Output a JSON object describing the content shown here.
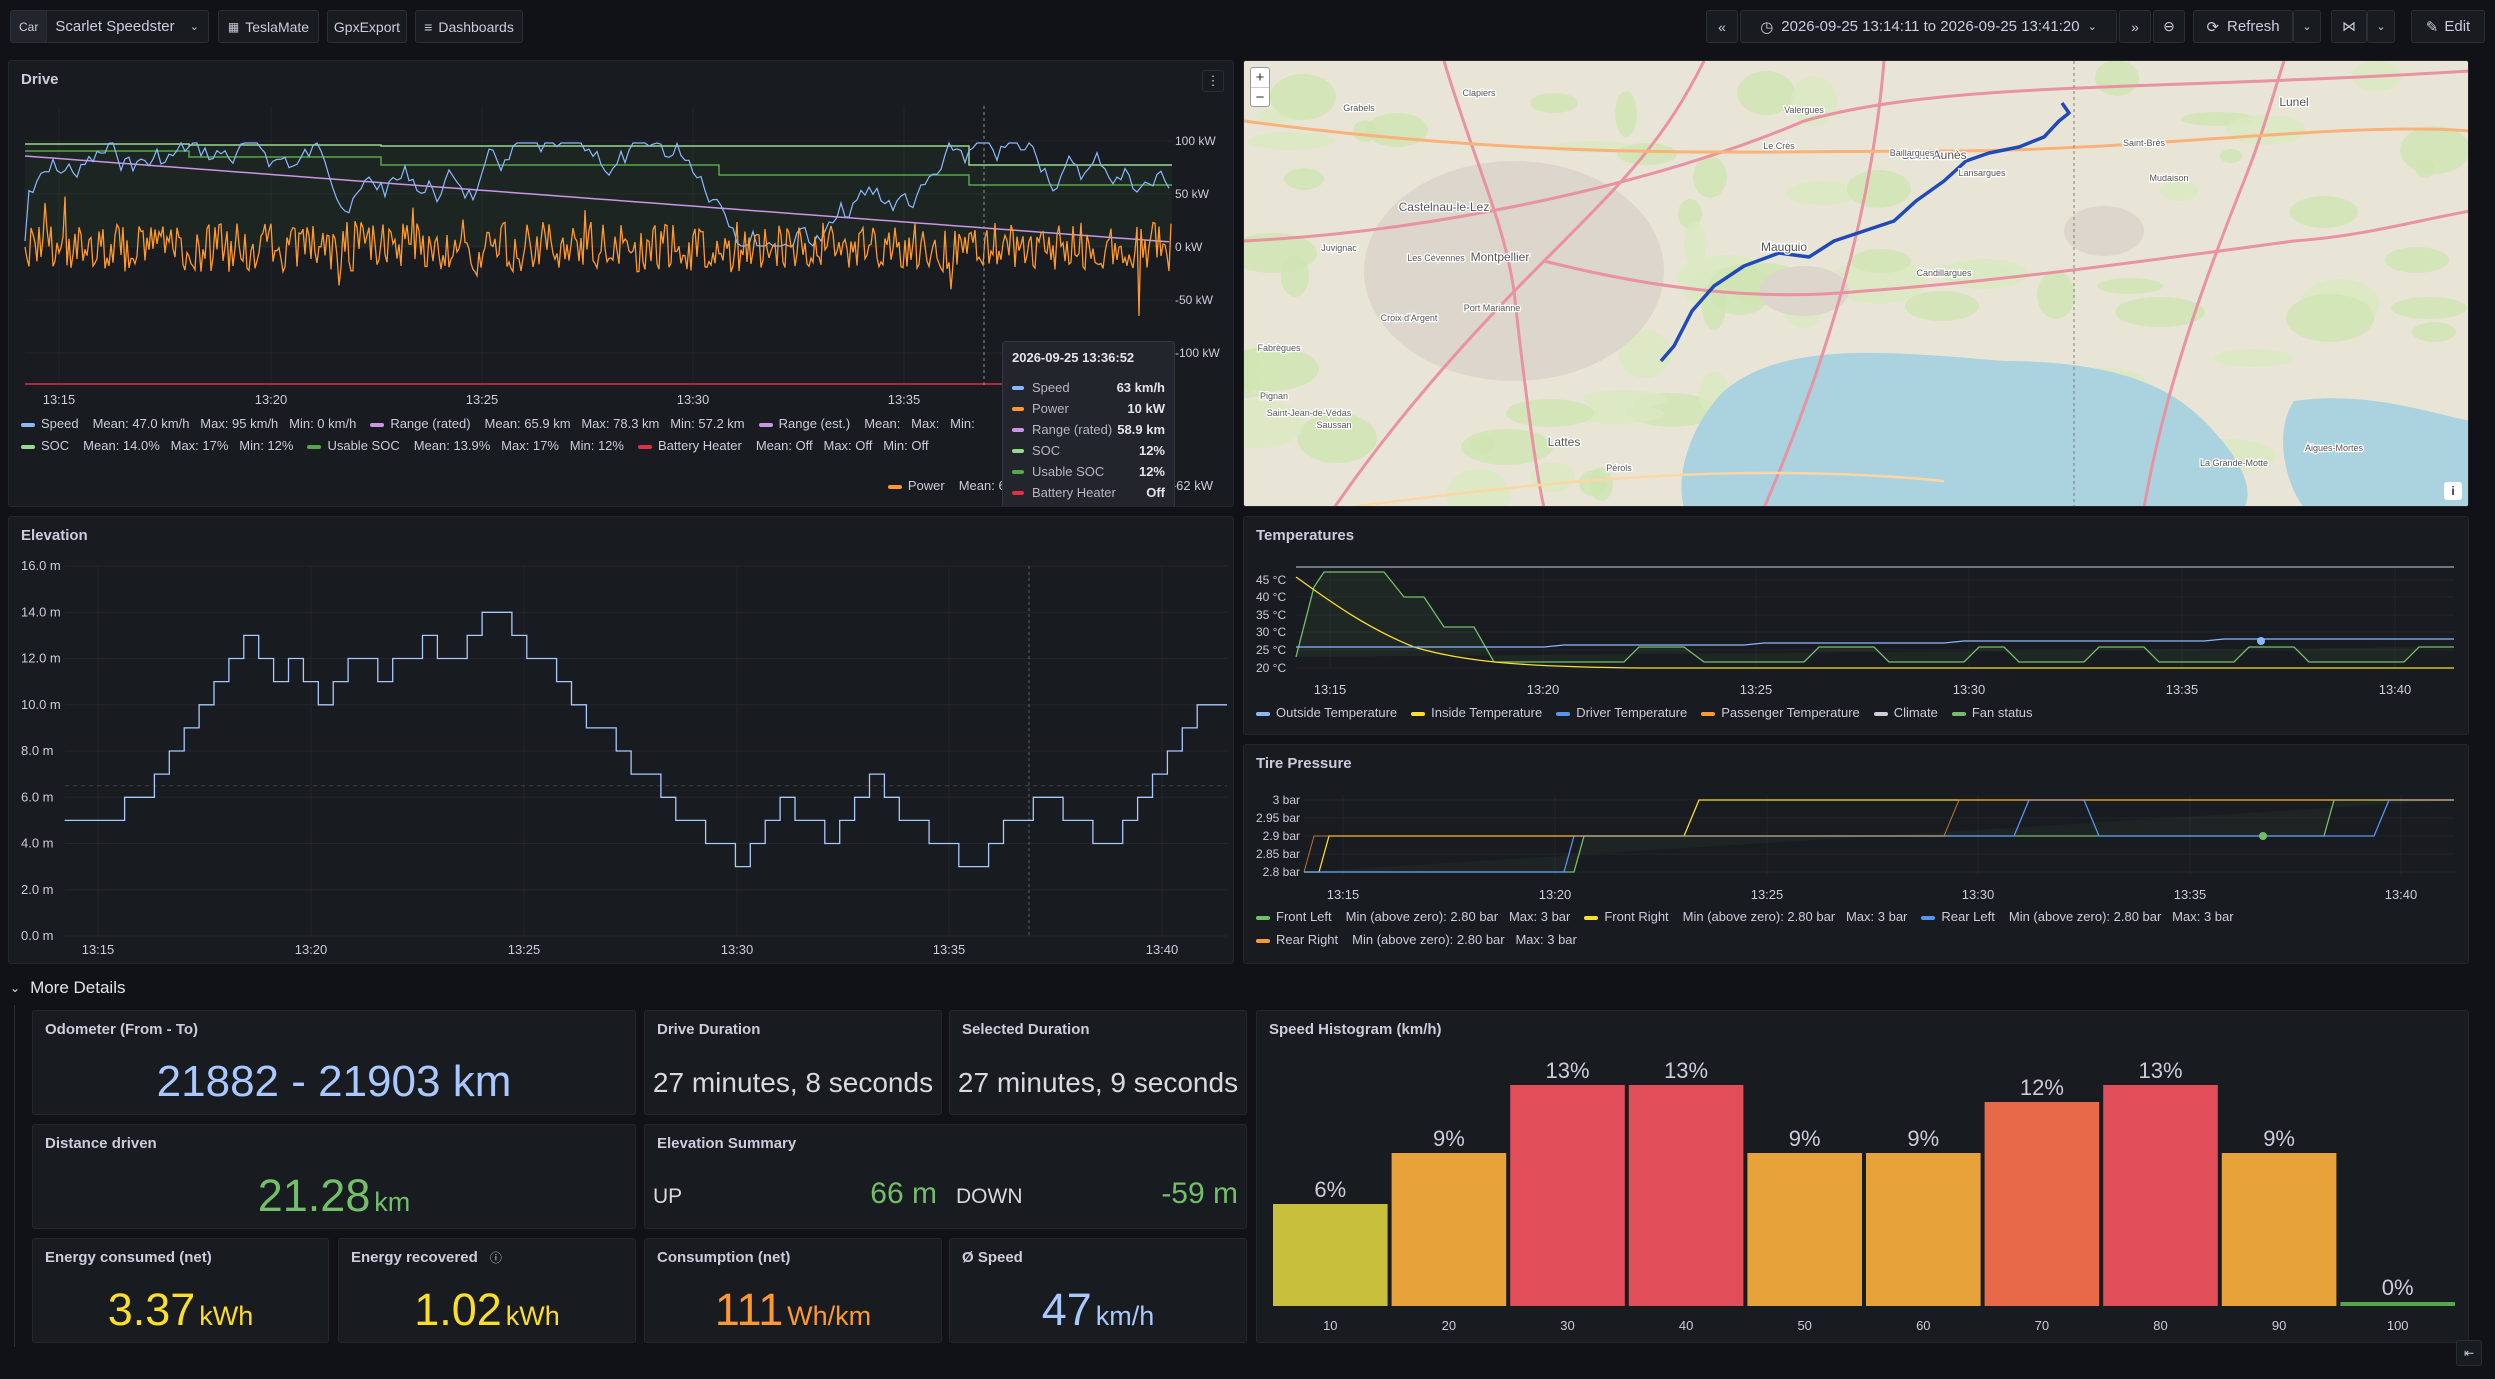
{
  "toolbar": {
    "car_label": "Car",
    "car_value": "Scarlet Speedster",
    "links": [
      "TeslaMate",
      "GpxExport",
      "Dashboards"
    ],
    "time_range": "2026-09-25 13:14:11 to 2026-09-25 13:41:20",
    "refresh": "Refresh",
    "edit": "Edit"
  },
  "drive": {
    "title": "Drive",
    "x_ticks": [
      "13:15",
      "13:20",
      "13:25",
      "13:30",
      "13:35"
    ],
    "y_ticks": [
      "100 kW",
      "50 kW",
      "0 kW",
      "-50 kW",
      "-100 kW"
    ],
    "legend_row1": [
      {
        "name": "Speed",
        "stats": "Mean: 47.0 km/h   Max: 95 km/h   Min: 0 km/h",
        "color": "#8ab8ff"
      },
      {
        "name": "Range (rated)",
        "stats": "Mean: 65.9 km   Max: 78.3 km   Min: 57.2 km",
        "color": "#ca95e5"
      },
      {
        "name": "Range (est.)",
        "stats": "Mean:   Max:   Min:",
        "color": "#ca95e5"
      }
    ],
    "legend_row2": [
      {
        "name": "SOC",
        "stats": "Mean: 14.0%   Max: 17%   Min: 12%",
        "color": "#96d98d"
      },
      {
        "name": "Usable SOC",
        "stats": "Mean: 13.9%   Max: 17%   Min: 12%",
        "color": "#56a64b"
      },
      {
        "name": "Battery Heater",
        "stats": "Mean: Off   Max: Off   Min: Off",
        "color": "#e02f44"
      }
    ],
    "legend_row3": [
      {
        "name": "Power",
        "stats": "Mean: 6.73 kW   Max: 101 kW   Min: -62 kW",
        "color": "#ff9830"
      }
    ],
    "tooltip": {
      "time": "2026-09-25 13:36:52",
      "rows": [
        {
          "label": "Speed",
          "value": "63 km/h",
          "color": "#8ab8ff"
        },
        {
          "label": "Power",
          "value": "10 kW",
          "color": "#ff9830"
        },
        {
          "label": "Range (rated)",
          "value": "58.9 km",
          "color": "#ca95e5"
        },
        {
          "label": "SOC",
          "value": "12%",
          "color": "#96d98d"
        },
        {
          "label": "Usable SOC",
          "value": "12%",
          "color": "#56a64b"
        },
        {
          "label": "Battery Heater",
          "value": "Off",
          "color": "#e02f44"
        }
      ]
    }
  },
  "map": {
    "zoom_in": "+",
    "zoom_out": "−",
    "info": "i",
    "places": [
      "Lunel",
      "Saint-Aunès",
      "Mauguio",
      "Montpellier",
      "Castelnau-le-Lez",
      "Lattes",
      "Pérols",
      "Juvignac",
      "Saint-Jean-de-Védas",
      "La Grande-Motte",
      "Aigues-Mortes",
      "Candillargues",
      "Lansargues",
      "Baillargues",
      "Port Marianne",
      "Les Cévennes",
      "Croix d'Argent",
      "Clapiers",
      "Grabels",
      "Mudaison",
      "Le Crès",
      "Fabrègues",
      "Pignan",
      "Saussan",
      "Saint-Brès",
      "Valergues"
    ]
  },
  "elevation": {
    "title": "Elevation",
    "x_ticks": [
      "13:15",
      "13:20",
      "13:25",
      "13:30",
      "13:35",
      "13:40"
    ],
    "y_ticks": [
      "16.0 m",
      "14.0 m",
      "12.0 m",
      "10.0 m",
      "8.0 m",
      "6.0 m",
      "4.0 m",
      "2.0 m",
      "0.0 m"
    ]
  },
  "temperatures": {
    "title": "Temperatures",
    "x_ticks": [
      "13:15",
      "13:20",
      "13:25",
      "13:30",
      "13:35",
      "13:40"
    ],
    "y_ticks": [
      "45 °C",
      "40 °C",
      "35 °C",
      "30 °C",
      "25 °C",
      "20 °C"
    ],
    "legend": [
      {
        "name": "Outside Temperature",
        "color": "#8ab8ff"
      },
      {
        "name": "Inside Temperature",
        "color": "#fade2a"
      },
      {
        "name": "Driver Temperature",
        "color": "#5794f2"
      },
      {
        "name": "Passenger Temperature",
        "color": "#ff9830"
      },
      {
        "name": "Climate",
        "color": "#ccccdc"
      },
      {
        "name": "Fan status",
        "color": "#73bf69"
      }
    ]
  },
  "tire": {
    "title": "Tire Pressure",
    "x_ticks": [
      "13:15",
      "13:20",
      "13:25",
      "13:30",
      "13:35",
      "13:40"
    ],
    "y_ticks": [
      "3 bar",
      "2.95 bar",
      "2.9 bar",
      "2.85 bar",
      "2.8 bar"
    ],
    "legend_row1": [
      {
        "name": "Front Left",
        "stats": "Min (above zero): 2.80 bar   Max: 3 bar",
        "color": "#73bf69"
      },
      {
        "name": "Front Right",
        "stats": "Min (above zero): 2.80 bar   Max: 3 bar",
        "color": "#fade2a"
      },
      {
        "name": "Rear Left",
        "stats": "Min (above zero): 2.80 bar   Max: 3 bar",
        "color": "#5794f2"
      }
    ],
    "legend_row2": [
      {
        "name": "Rear Right",
        "stats": "Min (above zero): 2.80 bar   Max: 3 bar",
        "color": "#ff9830"
      }
    ]
  },
  "more_details": "More Details",
  "stats": {
    "odometer": {
      "title": "Odometer (From - To)",
      "value": "21882 - 21903 km"
    },
    "drive_duration": {
      "title": "Drive Duration",
      "value": "27 minutes, 8 seconds"
    },
    "selected_duration": {
      "title": "Selected Duration",
      "value": "27 minutes, 9 seconds"
    },
    "distance": {
      "title": "Distance driven",
      "value": "21.28",
      "unit": "km"
    },
    "elevation_summary": {
      "title": "Elevation Summary",
      "up_label": "UP",
      "up_value": "66 m",
      "down_label": "DOWN",
      "down_value": "-59 m"
    },
    "energy_consumed": {
      "title": "Energy consumed (net)",
      "value": "3.37",
      "unit": "kWh"
    },
    "energy_recovered": {
      "title": "Energy recovered",
      "value": "1.02",
      "unit": "kWh"
    },
    "consumption": {
      "title": "Consumption (net)",
      "value": "111",
      "unit": "Wh/km"
    },
    "avg_speed": {
      "title": "Ø Speed",
      "value": "47",
      "unit": "km/h"
    }
  },
  "chart_data": {
    "type": "bar",
    "title": "Speed Histogram (km/h)",
    "categories": [
      "10",
      "20",
      "30",
      "40",
      "50",
      "60",
      "70",
      "80",
      "90",
      "100"
    ],
    "values": [
      6,
      9,
      13,
      13,
      9,
      9,
      12,
      13,
      9,
      0
    ],
    "labels": [
      "6%",
      "9%",
      "13%",
      "13%",
      "9%",
      "9%",
      "12%",
      "13%",
      "9%",
      "0%"
    ],
    "colors": [
      "#c8c03c",
      "#e8a23a",
      "#e24d5a",
      "#e24d5a",
      "#e8a23a",
      "#e8a23a",
      "#e8684a",
      "#e24d5a",
      "#e8a23a",
      "#56a64b"
    ]
  }
}
